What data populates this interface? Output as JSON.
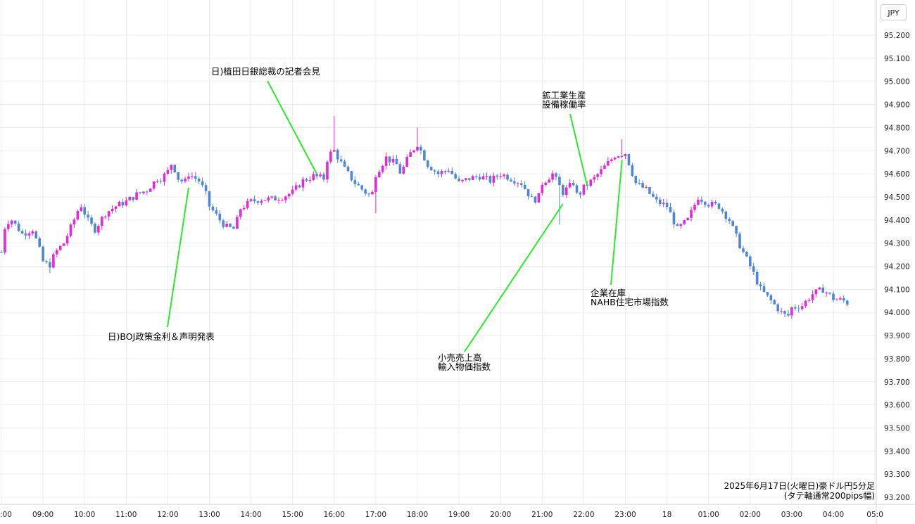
{
  "currency": "JPY",
  "caption": {
    "line1": "2025年6月17日(火曜日)豪ドル円5分足",
    "line2": "(タテ軸通常200pips幅)"
  },
  "chart_data": {
    "type": "candlestick",
    "x_tick_labels": [
      ":00",
      "09:00",
      "10:00",
      "11:00",
      "12:00",
      "13:00",
      "14:00",
      "15:00",
      "16:00",
      "17:00",
      "18:00",
      "19:00",
      "20:00",
      "21:00",
      "22:00",
      "23:00",
      "18",
      "01:00",
      "02:00",
      "03:00",
      "04:00",
      "05:0"
    ],
    "y_tick_labels": [
      "95.200",
      "95.100",
      "95.000",
      "94.900",
      "94.800",
      "94.700",
      "94.600",
      "94.500",
      "94.400",
      "94.300",
      "94.200",
      "94.100",
      "94.000",
      "93.900",
      "93.800",
      "93.700",
      "93.600",
      "93.500",
      "93.400",
      "93.300",
      "93.200"
    ],
    "ylim": [
      93.18,
      95.26
    ],
    "colors": {
      "up": "#e32ad6",
      "down": "#4f86d6"
    },
    "annotations": [
      {
        "lines": [
          "日)植田日銀総裁の記者会見"
        ],
        "at_time": 15.58,
        "at_price": 94.6
      },
      {
        "lines": [
          "日)BOJ政策金利＆声明発表"
        ],
        "at_time": 12.5,
        "at_price": 94.54
      },
      {
        "lines": [
          "鉱工業生産",
          "設備稼働率"
        ],
        "at_time": 22.08,
        "at_price": 94.55
      },
      {
        "lines": [
          "小売売上高",
          "輸入物価指数"
        ],
        "at_time": 21.5,
        "at_price": 94.47
      },
      {
        "lines": [
          "企業在庫",
          "NAHB住宅市場指数"
        ],
        "at_time": 22.92,
        "at_price": 94.66
      }
    ],
    "anchors": [
      [
        8.0,
        94.26
      ],
      [
        8.1,
        94.39
      ],
      [
        8.25,
        94.4
      ],
      [
        8.5,
        94.34
      ],
      [
        8.75,
        94.36
      ],
      [
        8.9,
        94.28
      ],
      [
        9.0,
        94.22
      ],
      [
        9.15,
        94.2
      ],
      [
        9.3,
        94.26
      ],
      [
        9.5,
        94.3
      ],
      [
        9.7,
        94.38
      ],
      [
        9.9,
        94.47
      ],
      [
        10.1,
        94.39
      ],
      [
        10.25,
        94.36
      ],
      [
        10.5,
        94.43
      ],
      [
        10.75,
        94.46
      ],
      [
        11.0,
        94.48
      ],
      [
        11.25,
        94.51
      ],
      [
        11.5,
        94.53
      ],
      [
        11.75,
        94.58
      ],
      [
        11.85,
        94.58
      ],
      [
        12.0,
        94.61
      ],
      [
        12.1,
        94.65
      ],
      [
        12.25,
        94.58
      ],
      [
        12.4,
        94.56
      ],
      [
        12.5,
        94.6
      ],
      [
        12.75,
        94.57
      ],
      [
        12.9,
        94.52
      ],
      [
        13.0,
        94.46
      ],
      [
        13.25,
        94.4
      ],
      [
        13.4,
        94.37
      ],
      [
        13.6,
        94.36
      ],
      [
        13.75,
        94.45
      ],
      [
        14.0,
        94.48
      ],
      [
        14.25,
        94.49
      ],
      [
        14.5,
        94.49
      ],
      [
        14.75,
        94.5
      ],
      [
        15.0,
        94.52
      ],
      [
        15.25,
        94.57
      ],
      [
        15.5,
        94.59
      ],
      [
        15.75,
        94.58
      ],
      [
        15.85,
        94.68
      ],
      [
        16.0,
        94.7
      ],
      [
        16.25,
        94.62
      ],
      [
        16.5,
        94.56
      ],
      [
        16.75,
        94.52
      ],
      [
        16.9,
        94.5
      ],
      [
        17.0,
        94.6
      ],
      [
        17.25,
        94.67
      ],
      [
        17.5,
        94.64
      ],
      [
        17.6,
        94.6
      ],
      [
        17.8,
        94.68
      ],
      [
        18.0,
        94.73
      ],
      [
        18.25,
        94.64
      ],
      [
        18.5,
        94.6
      ],
      [
        18.75,
        94.62
      ],
      [
        19.0,
        94.56
      ],
      [
        19.25,
        94.58
      ],
      [
        19.5,
        94.59
      ],
      [
        19.75,
        94.57
      ],
      [
        20.0,
        94.6
      ],
      [
        20.25,
        94.58
      ],
      [
        20.5,
        94.56
      ],
      [
        20.75,
        94.49
      ],
      [
        20.9,
        94.49
      ],
      [
        21.0,
        94.56
      ],
      [
        21.25,
        94.6
      ],
      [
        21.5,
        94.52
      ],
      [
        21.75,
        94.56
      ],
      [
        21.85,
        94.5
      ],
      [
        22.0,
        94.54
      ],
      [
        22.25,
        94.58
      ],
      [
        22.5,
        94.63
      ],
      [
        22.75,
        94.68
      ],
      [
        23.0,
        94.69
      ],
      [
        23.25,
        94.56
      ],
      [
        23.5,
        94.53
      ],
      [
        23.75,
        94.48
      ],
      [
        24.0,
        94.46
      ],
      [
        24.25,
        94.36
      ],
      [
        24.5,
        94.4
      ],
      [
        24.75,
        94.5
      ],
      [
        25.0,
        94.47
      ],
      [
        25.25,
        94.46
      ],
      [
        25.5,
        94.4
      ],
      [
        25.75,
        94.29
      ],
      [
        26.0,
        94.2
      ],
      [
        26.25,
        94.1
      ],
      [
        26.5,
        94.05
      ],
      [
        26.75,
        94.0
      ],
      [
        26.9,
        93.98
      ],
      [
        27.0,
        94.02
      ],
      [
        27.25,
        94.03
      ],
      [
        27.5,
        94.08
      ],
      [
        27.75,
        94.1
      ],
      [
        28.0,
        94.06
      ],
      [
        28.25,
        94.05
      ],
      [
        28.35,
        94.04
      ]
    ],
    "spikes": [
      {
        "at_time": 16.0,
        "high": 94.85
      },
      {
        "at_time": 18.0,
        "high": 94.8
      },
      {
        "at_time": 21.4,
        "low": 94.38
      },
      {
        "at_time": 9.2,
        "low": 94.17
      },
      {
        "at_time": 17.0,
        "low": 94.43
      },
      {
        "at_time": 22.95,
        "high": 94.75
      }
    ]
  }
}
